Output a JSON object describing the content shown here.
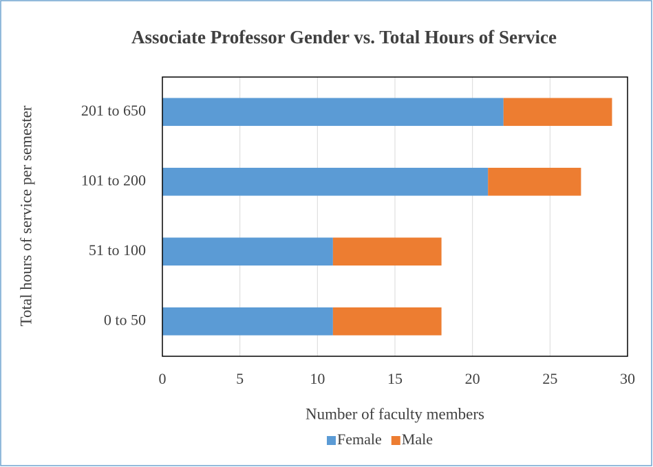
{
  "chart_data": {
    "type": "stacked_barh",
    "title": "Associate Professor Gender vs. Total Hours of Service",
    "xlabel": "Number of faculty members",
    "ylabel": "Total hours of service per semester",
    "categories": [
      "0 to 50",
      "51 to 100",
      "101 to 200",
      "201 to 650"
    ],
    "series": [
      {
        "name": "Female",
        "color": "#5b9bd5",
        "values": [
          11,
          11,
          21,
          22
        ]
      },
      {
        "name": "Male",
        "color": "#ed7d31",
        "values": [
          7,
          7,
          6,
          7
        ]
      }
    ],
    "xlim": [
      0,
      30
    ],
    "xticks": [
      0,
      5,
      10,
      15,
      20,
      25,
      30
    ],
    "grid": true,
    "legend": "bottom"
  }
}
